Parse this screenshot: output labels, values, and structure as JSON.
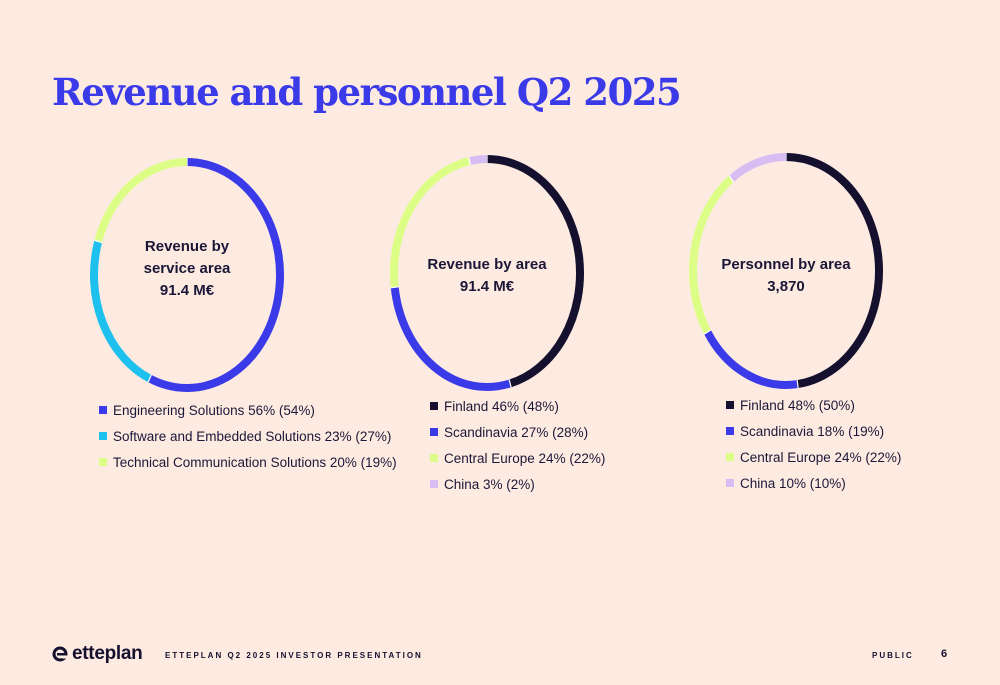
{
  "title": "Revenue and personnel Q2 2025",
  "colors": {
    "background": "#fdebe2",
    "title": "#3a3ae8",
    "Engineering Solutions": "#3a3ae8",
    "Software and Embedded Solutions": "#1ec0ee",
    "Technical Communication Solutions": "#dcfe86",
    "Finland": "#14102e",
    "Scandinavia": "#3a3ae8",
    "Central Europe": "#dcfe86",
    "China": "#d8bdf2"
  },
  "chart_data": [
    {
      "type": "pie",
      "center_label": [
        "Revenue by",
        "service area",
        "91.4 M€"
      ],
      "slices": [
        {
          "name": "Engineering Solutions",
          "value": 56,
          "color": "#3a3ae8"
        },
        {
          "name": "Software and Embedded Solutions",
          "value": 23,
          "color": "#1ec0ee"
        },
        {
          "name": "Technical Communication Solutions",
          "value": 20,
          "color": "#dcfe86"
        }
      ],
      "legend": [
        "Engineering Solutions 56% (54%)",
        "Software and Embedded Solutions 23% (27%)",
        "Technical Communication Solutions 20% (19%)"
      ]
    },
    {
      "type": "pie",
      "center_label": [
        "Revenue by area",
        "91.4 M€"
      ],
      "slices": [
        {
          "name": "Finland",
          "value": 46,
          "color": "#14102e"
        },
        {
          "name": "Scandinavia",
          "value": 27,
          "color": "#3a3ae8"
        },
        {
          "name": "Central Europe",
          "value": 24,
          "color": "#dcfe86"
        },
        {
          "name": "China",
          "value": 3,
          "color": "#d8bdf2"
        }
      ],
      "legend": [
        "Finland 46% (48%)",
        "Scandinavia 27% (28%)",
        "Central Europe 24% (22%)",
        "China 3% (2%)"
      ]
    },
    {
      "type": "pie",
      "center_label": [
        "Personnel by area",
        "3,870"
      ],
      "slices": [
        {
          "name": "Finland",
          "value": 48,
          "color": "#14102e"
        },
        {
          "name": "Scandinavia",
          "value": 18,
          "color": "#3a3ae8"
        },
        {
          "name": "Central Europe",
          "value": 24,
          "color": "#dcfe86"
        },
        {
          "name": "China",
          "value": 10,
          "color": "#d8bdf2"
        }
      ],
      "legend": [
        "Finland 48% (50%)",
        "Scandinavia 18% (19%)",
        "Central Europe 24% (22%)",
        "China 10% (10%)"
      ]
    }
  ],
  "footer": {
    "logo_text": "etteplan",
    "caption": "ETTEPLAN Q2 2025 INVESTOR PRESENTATION",
    "classification": "PUBLIC",
    "page_number": "6"
  }
}
